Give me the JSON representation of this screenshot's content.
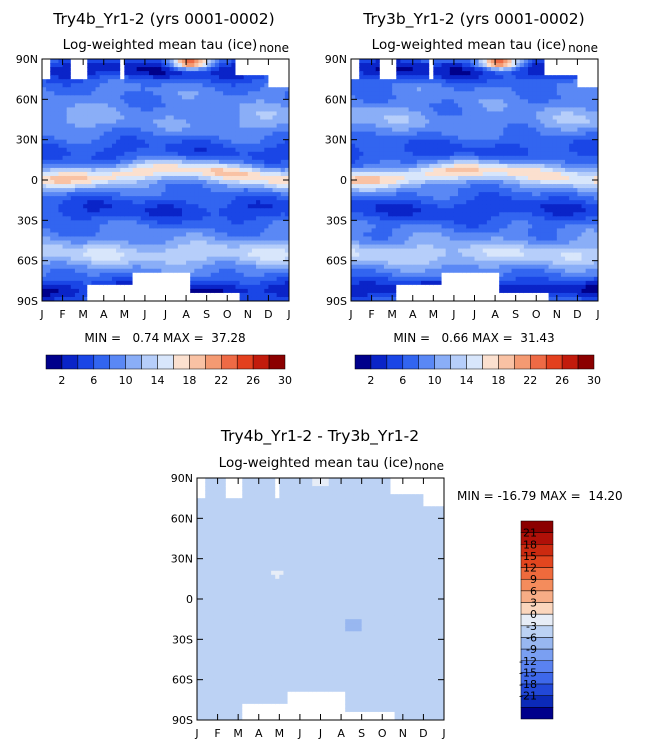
{
  "figure": {
    "panel_subtitle": "Log-weighted mean tau (ice)",
    "panel_corner_label": "none"
  },
  "chart_data": [
    {
      "type": "heatmap",
      "title": "Try4b_Yr1-2 (yrs 0001-0002)",
      "subtitle": "Log-weighted mean tau (ice)",
      "corner_label": "none",
      "x_ticks": [
        "J",
        "F",
        "M",
        "A",
        "M",
        "J",
        "J",
        "A",
        "S",
        "O",
        "N",
        "D",
        "J"
      ],
      "y_ticks": [
        "90N",
        "60N",
        "30N",
        "0",
        "30S",
        "60S",
        "90S"
      ],
      "ylim": [
        -90,
        90
      ],
      "min": "0.74",
      "max": "37.28",
      "stats_text": "MIN =   0.74 MAX =  37.28",
      "colorbar": {
        "orientation": "horizontal",
        "labels": [
          "2",
          "6",
          "10",
          "14",
          "18",
          "22",
          "26",
          "30"
        ],
        "colors": [
          "#00008b",
          "#0a24c8",
          "#1a46e6",
          "#3265f0",
          "#5a88f5",
          "#8aaef7",
          "#b6cefa",
          "#d8e6fb",
          "#fbe0cf",
          "#f9c2a4",
          "#f49a72",
          "#ee6a45",
          "#e3401e",
          "#c21b0c",
          "#8b0000"
        ]
      },
      "field": "abs"
    },
    {
      "type": "heatmap",
      "title": "Try3b_Yr1-2 (yrs 0001-0002)",
      "subtitle": "Log-weighted mean tau (ice)",
      "corner_label": "none",
      "x_ticks": [
        "J",
        "F",
        "M",
        "A",
        "M",
        "J",
        "J",
        "A",
        "S",
        "O",
        "N",
        "D",
        "J"
      ],
      "y_ticks": [
        "90N",
        "60N",
        "30N",
        "0",
        "30S",
        "60S",
        "90S"
      ],
      "ylim": [
        -90,
        90
      ],
      "min": "0.66",
      "max": "31.43",
      "stats_text": "MIN =   0.66 MAX =  31.43",
      "colorbar": {
        "orientation": "horizontal",
        "labels": [
          "2",
          "6",
          "10",
          "14",
          "18",
          "22",
          "26",
          "30"
        ],
        "colors": [
          "#00008b",
          "#0a24c8",
          "#1a46e6",
          "#3265f0",
          "#5a88f5",
          "#8aaef7",
          "#b6cefa",
          "#d8e6fb",
          "#fbe0cf",
          "#f9c2a4",
          "#f49a72",
          "#ee6a45",
          "#e3401e",
          "#c21b0c",
          "#8b0000"
        ]
      },
      "field": "abs"
    },
    {
      "type": "heatmap",
      "title": "Try4b_Yr1-2 - Try3b_Yr1-2",
      "subtitle": "Log-weighted mean tau (ice)",
      "corner_label": "none",
      "x_ticks": [
        "J",
        "F",
        "M",
        "A",
        "M",
        "J",
        "J",
        "A",
        "S",
        "O",
        "N",
        "D",
        "J"
      ],
      "y_ticks": [
        "90N",
        "60N",
        "30N",
        "0",
        "30S",
        "60S",
        "90S"
      ],
      "ylim": [
        -90,
        90
      ],
      "min": "-16.79",
      "max": "14.20",
      "stats_text": "MIN = -16.79 MAX =  14.20",
      "colorbar": {
        "orientation": "vertical",
        "labels": [
          "21",
          "18",
          "15",
          "12",
          "9",
          "6",
          "3",
          "0",
          "-3",
          "-6",
          "-9",
          "-12",
          "-15",
          "-18",
          "-21"
        ],
        "colors": [
          "#8b0000",
          "#b01008",
          "#cc2a10",
          "#e2461f",
          "#ef6a3c",
          "#f48c5c",
          "#f7ad86",
          "#fbd6bd",
          "#e7edf7",
          "#bcd2f4",
          "#98b7f0",
          "#7a9ff2",
          "#5a82f0",
          "#3e68ea",
          "#2248d8",
          "#0b2ab8",
          "#00008b"
        ]
      },
      "field": "diff"
    }
  ]
}
